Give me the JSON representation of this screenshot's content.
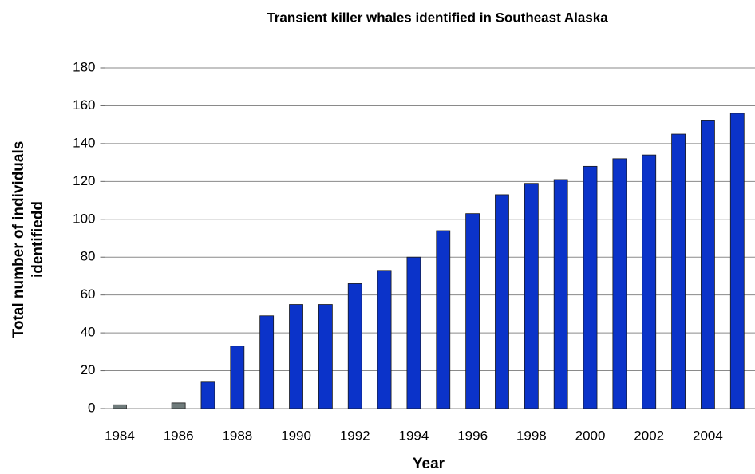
{
  "chart_data": {
    "type": "bar",
    "title": "Transient killer whales identified in Southeast Alaska",
    "x_label": "Year",
    "y_label": [
      "Total number of individuals",
      "identifiedd"
    ],
    "categories": [
      "1984",
      null,
      "1986",
      null,
      "1988",
      null,
      "1990",
      null,
      "1992",
      null,
      "1994",
      null,
      "1996",
      null,
      "1998",
      null,
      "2000",
      null,
      "2002",
      null,
      "2004",
      null
    ],
    "values": [
      2,
      0,
      3,
      14,
      33,
      49,
      55,
      55,
      66,
      73,
      80,
      94,
      103,
      113,
      119,
      121,
      128,
      132,
      134,
      145,
      152,
      156
    ],
    "colors": [
      "#6f7b7b",
      "#6f7b7b",
      "#6f7b7b",
      "#0b33c9",
      "#0b33c9",
      "#0b33c9",
      "#0b33c9",
      "#0b33c9",
      "#0b33c9",
      "#0b33c9",
      "#0b33c9",
      "#0b33c9",
      "#0b33c9",
      "#0b33c9",
      "#0b33c9",
      "#0b33c9",
      "#0b33c9",
      "#0b33c9",
      "#0b33c9",
      "#0b33c9",
      "#0b33c9",
      "#0b33c9"
    ],
    "ylim": [
      0,
      180
    ],
    "yticks": [
      0,
      20,
      40,
      60,
      80,
      100,
      120,
      140,
      160,
      180
    ],
    "grid": true
  }
}
